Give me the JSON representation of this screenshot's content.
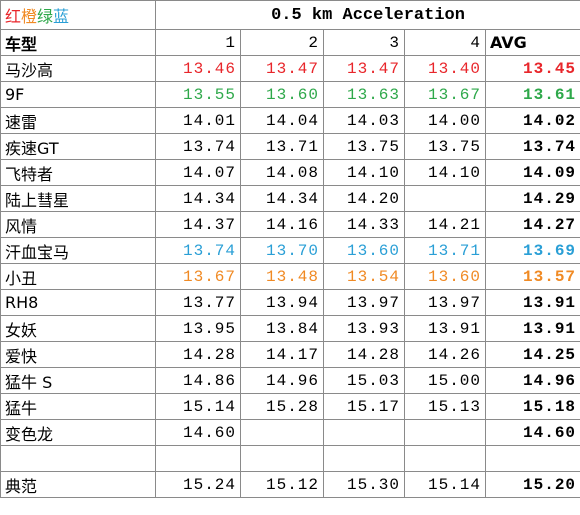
{
  "title_legend": [
    {
      "text": "红",
      "color": "#e8262b"
    },
    {
      "text": "橙",
      "color": "#f08a24"
    },
    {
      "text": "绿",
      "color": "#2ea84a"
    },
    {
      "text": "蓝",
      "color": "#2a9fd6"
    }
  ],
  "title": "0.5 km Acceleration",
  "header": {
    "name": "车型",
    "runs": [
      "1",
      "2",
      "3",
      "4"
    ],
    "avg": "AVG"
  },
  "rows": [
    {
      "name": "马沙高",
      "values": [
        "13.46",
        "13.47",
        "13.47",
        "13.40"
      ],
      "avg": "13.45",
      "color": "#e8262b"
    },
    {
      "name": "9F",
      "values": [
        "13.55",
        "13.60",
        "13.63",
        "13.67"
      ],
      "avg": "13.61",
      "color": "#2ea84a"
    },
    {
      "name": "速雷",
      "values": [
        "14.01",
        "14.04",
        "14.03",
        "14.00"
      ],
      "avg": "14.02"
    },
    {
      "name": "疾速GT",
      "values": [
        "13.74",
        "13.71",
        "13.75",
        "13.75"
      ],
      "avg": "13.74"
    },
    {
      "name": "飞特者",
      "values": [
        "14.07",
        "14.08",
        "14.10",
        "14.10"
      ],
      "avg": "14.09"
    },
    {
      "name": "陆上彗星",
      "values": [
        "14.34",
        "14.34",
        "14.20",
        null
      ],
      "avg": "14.29"
    },
    {
      "name": "风情",
      "values": [
        "14.37",
        "14.16",
        "14.33",
        "14.21"
      ],
      "avg": "14.27"
    },
    {
      "name": "汗血宝马",
      "values": [
        "13.74",
        "13.70",
        "13.60",
        "13.71"
      ],
      "avg": "13.69",
      "color": "#2a9fd6"
    },
    {
      "name": "小丑",
      "values": [
        "13.67",
        "13.48",
        "13.54",
        "13.60"
      ],
      "avg": "13.57",
      "color": "#f08a24"
    },
    {
      "name": "RH8",
      "values": [
        "13.77",
        "13.94",
        "13.97",
        "13.97"
      ],
      "avg": "13.91"
    },
    {
      "name": "女妖",
      "values": [
        "13.95",
        "13.84",
        "13.93",
        "13.91"
      ],
      "avg": "13.91"
    },
    {
      "name": "爱快",
      "values": [
        "14.28",
        "14.17",
        "14.28",
        "14.26"
      ],
      "avg": "14.25"
    },
    {
      "name": "猛牛 S",
      "values": [
        "14.86",
        "14.96",
        "15.03",
        "15.00"
      ],
      "avg": "14.96"
    },
    {
      "name": "猛牛",
      "values": [
        "15.14",
        "15.28",
        "15.17",
        "15.13"
      ],
      "avg": "15.18"
    },
    {
      "name": "变色龙",
      "values": [
        "14.60",
        null,
        null,
        null
      ],
      "avg": "14.60"
    },
    {
      "name": null,
      "values": [
        null,
        null,
        null,
        null
      ],
      "avg": null
    },
    {
      "name": "典范",
      "values": [
        "15.24",
        "15.12",
        "15.30",
        "15.14"
      ],
      "avg": "15.20"
    }
  ]
}
